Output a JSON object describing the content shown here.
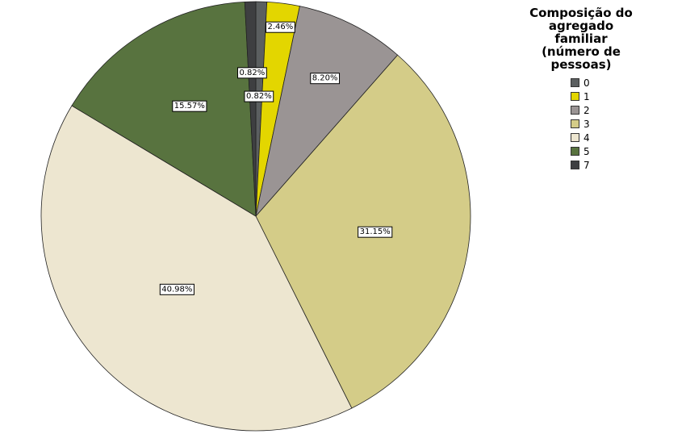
{
  "chart_data": {
    "type": "pie",
    "legend_title": "Composição do agregado familiar (número de pessoas)",
    "categories": [
      "0",
      "1",
      "2",
      "3",
      "4",
      "5",
      "7"
    ],
    "values": [
      0.82,
      2.46,
      8.2,
      31.15,
      40.98,
      15.57,
      0.82
    ],
    "value_labels": [
      "0.82%",
      "2.46%",
      "8.20%",
      "31.15%",
      "40.98%",
      "15.57%",
      "0.82%"
    ],
    "colors": [
      "#5b5f60",
      "#e3d600",
      "#9a9494",
      "#d4cc88",
      "#ede6d0",
      "#58733f",
      "#3e3f41"
    ],
    "legend": "right"
  }
}
